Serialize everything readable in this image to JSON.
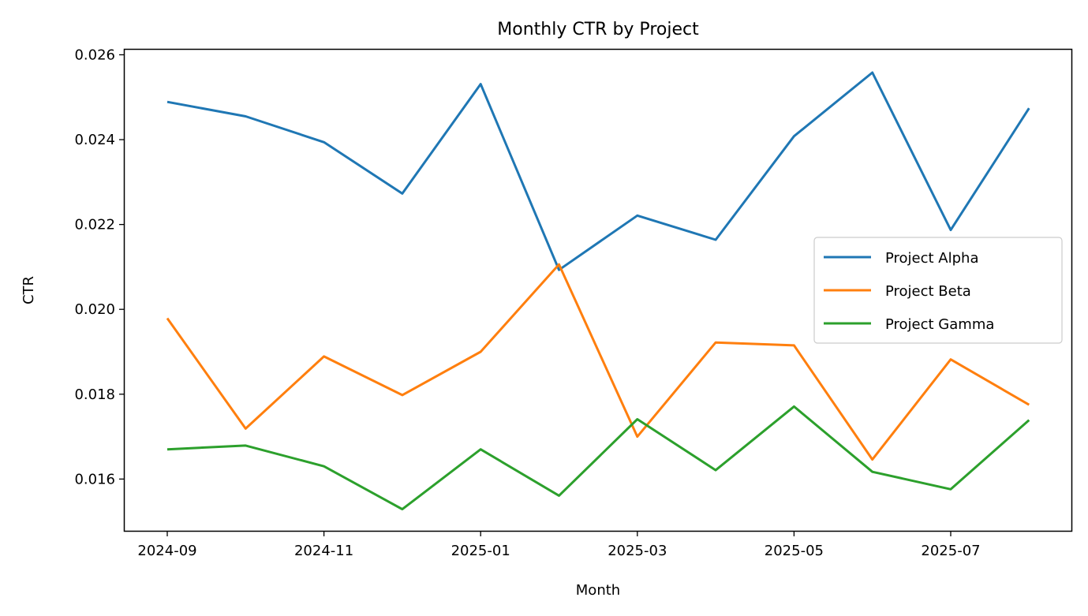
{
  "chart_data": {
    "type": "line",
    "title": "Monthly CTR by Project",
    "xlabel": "Month",
    "ylabel": "CTR",
    "x": [
      "2024-09",
      "2024-10",
      "2024-11",
      "2024-12",
      "2025-01",
      "2025-02",
      "2025-03",
      "2025-04",
      "2025-05",
      "2025-06",
      "2025-07",
      "2025-08"
    ],
    "x_ticks": [
      "2024-09",
      "2024-11",
      "2025-01",
      "2025-03",
      "2025-05",
      "2025-07"
    ],
    "y_ticks": [
      "0.016",
      "0.018",
      "0.020",
      "0.022",
      "0.024",
      "0.026"
    ],
    "ylim": [
      0.01478,
      0.02612
    ],
    "grid": false,
    "legend_position": "center-right",
    "series": [
      {
        "name": "Project Alpha",
        "color": "#1f77b4",
        "values": [
          0.02489,
          0.02455,
          0.02394,
          0.02273,
          0.02531,
          0.02093,
          0.02221,
          0.02164,
          0.02408,
          0.02558,
          0.02187,
          0.02474
        ]
      },
      {
        "name": "Project Beta",
        "color": "#ff7f0e",
        "values": [
          0.01979,
          0.01719,
          0.01889,
          0.01798,
          0.019,
          0.02106,
          0.017,
          0.01922,
          0.01915,
          0.01646,
          0.01882,
          0.01775
        ]
      },
      {
        "name": "Project Gamma",
        "color": "#2ca02c",
        "values": [
          0.0167,
          0.01679,
          0.0163,
          0.01529,
          0.0167,
          0.01561,
          0.01741,
          0.01621,
          0.01771,
          0.01617,
          0.01576,
          0.01739
        ]
      }
    ]
  }
}
